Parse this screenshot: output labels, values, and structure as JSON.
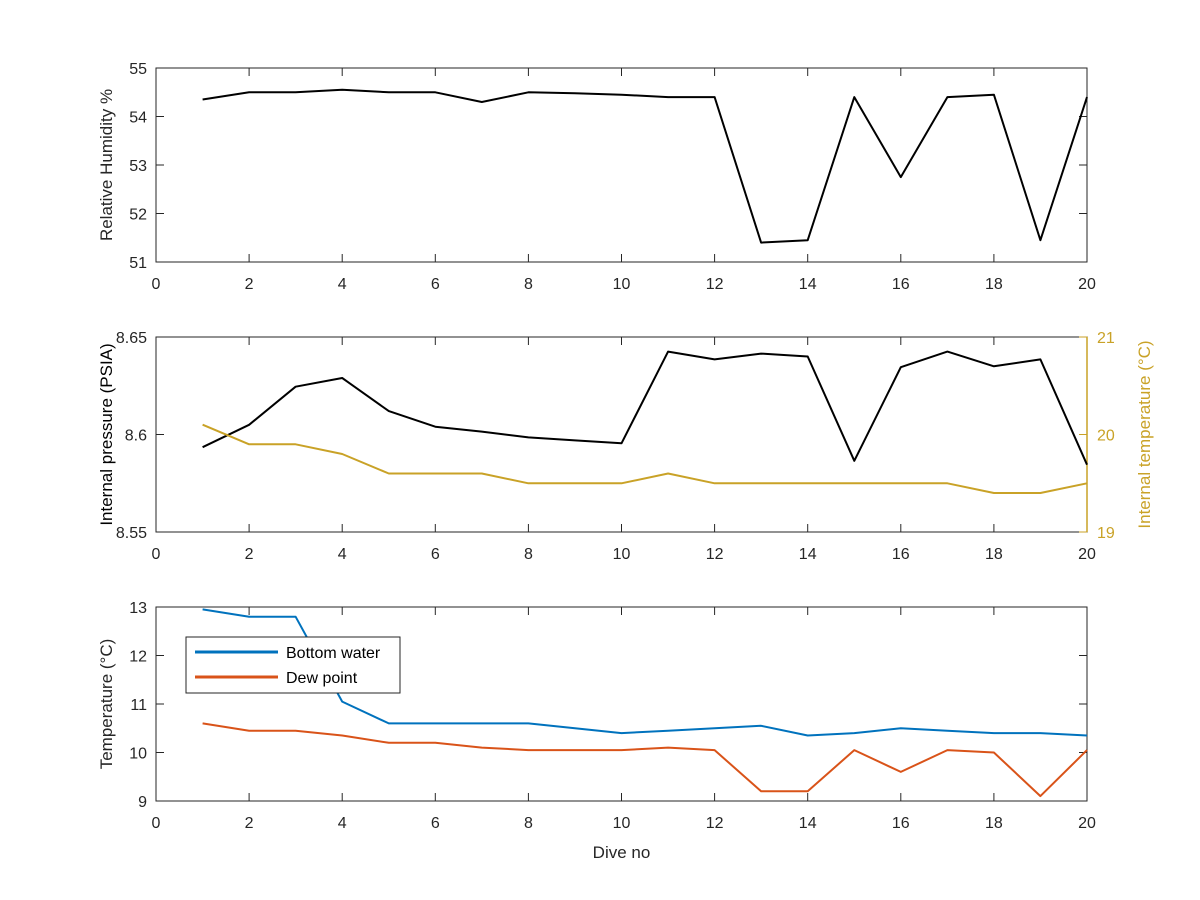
{
  "chart_data": [
    {
      "type": "line",
      "xlabel": "",
      "ylabel": "Relative Humidity %",
      "xlim": [
        0,
        20
      ],
      "ylim": [
        51,
        55
      ],
      "x_ticks": [
        "0",
        "2",
        "4",
        "6",
        "8",
        "10",
        "12",
        "14",
        "16",
        "18",
        "20"
      ],
      "y_ticks": [
        "51",
        "52",
        "53",
        "54",
        "55"
      ],
      "grid": false,
      "x": [
        1,
        2,
        3,
        4,
        5,
        6,
        7,
        8,
        9,
        10,
        11,
        12,
        13,
        14,
        15,
        16,
        17,
        18,
        19,
        20
      ],
      "series": [
        {
          "color": "#000000",
          "values": [
            54.35,
            54.5,
            54.5,
            54.55,
            54.5,
            54.5,
            54.3,
            54.5,
            54.48,
            54.45,
            54.4,
            54.4,
            51.4,
            51.45,
            54.4,
            52.75,
            54.4,
            54.45,
            51.45,
            54.4
          ]
        }
      ]
    },
    {
      "type": "line",
      "xlabel": "",
      "ylabel": "Internal pressure (PSIA)",
      "ylabel_right": "Internal temperature (°C)",
      "xlim": [
        0,
        20
      ],
      "ylim": [
        8.55,
        8.65
      ],
      "ylim_right": [
        19,
        21
      ],
      "x_ticks": [
        "0",
        "2",
        "4",
        "6",
        "8",
        "10",
        "12",
        "14",
        "16",
        "18",
        "20"
      ],
      "y_ticks": [
        "8.55",
        "8.6",
        "8.65"
      ],
      "y_ticks_right": [
        "19",
        "20",
        "21"
      ],
      "grid": false,
      "x": [
        1,
        2,
        3,
        4,
        5,
        6,
        7,
        8,
        9,
        10,
        11,
        12,
        13,
        14,
        15,
        16,
        17,
        18,
        19,
        20
      ],
      "series": [
        {
          "color": "#000000",
          "axis": "left",
          "values": [
            8.5935,
            8.605,
            8.6245,
            8.629,
            8.612,
            8.604,
            8.6015,
            8.5985,
            8.597,
            8.5955,
            8.6425,
            8.6385,
            8.6415,
            8.64,
            8.5865,
            8.6345,
            8.6425,
            8.635,
            8.6385,
            8.5845
          ]
        },
        {
          "color": "#c9a227",
          "axis": "right",
          "values": [
            20.1,
            19.9,
            19.9,
            19.8,
            19.6,
            19.6,
            19.6,
            19.5,
            19.5,
            19.5,
            19.6,
            19.5,
            19.5,
            19.5,
            19.5,
            19.5,
            19.5,
            19.4,
            19.4,
            19.5
          ]
        }
      ]
    },
    {
      "type": "line",
      "xlabel": "Dive no",
      "ylabel": "Temperature (°C)",
      "xlim": [
        0,
        20
      ],
      "ylim": [
        9,
        13
      ],
      "x_ticks": [
        "0",
        "2",
        "4",
        "6",
        "8",
        "10",
        "12",
        "14",
        "16",
        "18",
        "20"
      ],
      "y_ticks": [
        "9",
        "10",
        "11",
        "12",
        "13"
      ],
      "grid": false,
      "legend": "upper-left",
      "x": [
        1,
        2,
        3,
        4,
        5,
        6,
        7,
        8,
        9,
        10,
        11,
        12,
        13,
        14,
        15,
        16,
        17,
        18,
        19,
        20
      ],
      "series": [
        {
          "name": "Bottom water",
          "color": "#0072bd",
          "values": [
            12.95,
            12.8,
            12.8,
            11.05,
            10.6,
            10.6,
            10.6,
            10.6,
            10.5,
            10.4,
            10.45,
            10.5,
            10.55,
            10.35,
            10.4,
            10.5,
            10.45,
            10.4,
            10.4,
            10.35
          ]
        },
        {
          "name": "Dew point",
          "color": "#d95319",
          "values": [
            10.6,
            10.45,
            10.45,
            10.35,
            10.2,
            10.2,
            10.1,
            10.05,
            10.05,
            10.05,
            10.1,
            10.05,
            9.2,
            9.2,
            10.05,
            9.6,
            10.05,
            10.0,
            9.1,
            10.05
          ]
        }
      ]
    }
  ]
}
